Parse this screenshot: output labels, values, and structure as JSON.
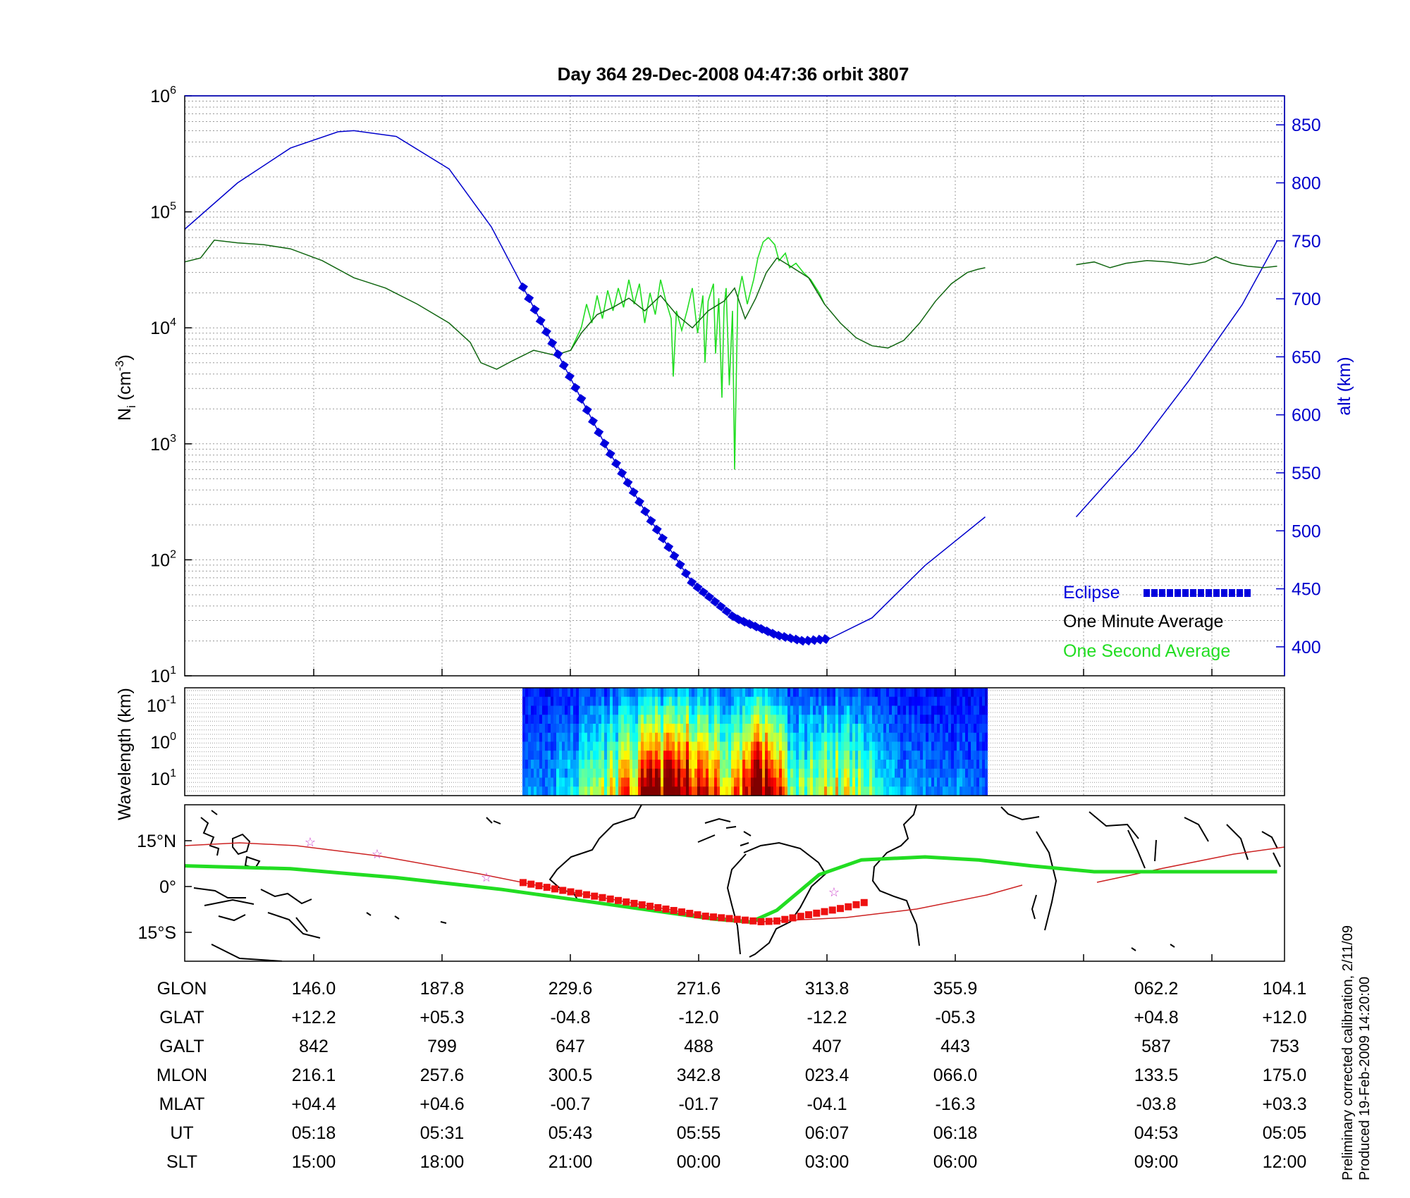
{
  "title": "Day 364  29-Dec-2008 04:47:36   orbit 3807",
  "footer_lines": [
    "Preliminary corrected calibration, 2/11/09",
    "Produced 19-Feb-2009 14:20:00"
  ],
  "colors": {
    "eclipse": "#0000dd",
    "one_minute": "#000000",
    "one_second": "#22dd22",
    "altitude": "#0000cc",
    "track": "#22dd22",
    "track_red": "#ee1111",
    "orbit_line": "#cc2222",
    "stars": "#cc44cc"
  },
  "chart_data": [
    {
      "type": "line",
      "ylabel": "N",
      "ylabel_subscript": "i",
      "ylabel_unit": "(cm",
      "ylabel_unit_exp": "-3",
      "ylabel_unit_close": ")",
      "y_ticks": [
        {
          "base": "10",
          "exp": "1",
          "value": 10
        },
        {
          "base": "10",
          "exp": "2",
          "value": 100
        },
        {
          "base": "10",
          "exp": "3",
          "value": 1000
        },
        {
          "base": "10",
          "exp": "4",
          "value": 10000
        },
        {
          "base": "10",
          "exp": "5",
          "value": 100000
        },
        {
          "base": "10",
          "exp": "6",
          "value": 1000000
        }
      ],
      "ylim": [
        10,
        1000000
      ],
      "yscale": "log",
      "y2label": "alt (km)",
      "y2_ticks": [
        "400",
        "450",
        "500",
        "550",
        "600",
        "650",
        "700",
        "750",
        "800",
        "850"
      ],
      "y2lim": [
        375,
        875
      ],
      "x_ticks": [
        "146.0",
        "187.8",
        "229.6",
        "271.6",
        "313.8",
        "355.9",
        "062.2",
        "104.1"
      ],
      "grid": true,
      "legend": {
        "placement": "bottom-right",
        "entries": [
          "Eclipse",
          "One Minute Average",
          "One Second Average"
        ]
      },
      "series": [
        {
          "name": "One Minute Average",
          "points": [
            [
              0,
              37000
            ],
            [
              0.15,
              40000
            ],
            [
              0.28,
              57000
            ],
            [
              0.5,
              54000
            ],
            [
              0.75,
              52000
            ],
            [
              1.0,
              48000
            ],
            [
              1.3,
              38000
            ],
            [
              1.6,
              27000
            ],
            [
              1.9,
              22000
            ],
            [
              2.2,
              16000
            ],
            [
              2.5,
              11000
            ],
            [
              2.7,
              7500
            ],
            [
              2.8,
              5000
            ],
            [
              2.95,
              4400
            ],
            [
              3.1,
              5200
            ],
            [
              3.3,
              6400
            ],
            [
              3.5,
              5800
            ],
            [
              3.65,
              6400
            ],
            [
              3.75,
              9000
            ],
            [
              3.9,
              13000
            ],
            [
              4.05,
              15000
            ],
            [
              4.2,
              18000
            ],
            [
              4.35,
              14000
            ],
            [
              4.5,
              19000
            ],
            [
              4.65,
              13000
            ],
            [
              4.8,
              10000
            ],
            [
              4.95,
              14000
            ],
            [
              5.1,
              17000
            ],
            [
              5.2,
              22000
            ],
            [
              5.3,
              12000
            ],
            [
              5.4,
              18000
            ],
            [
              5.5,
              30000
            ],
            [
              5.6,
              40000
            ],
            [
              5.75,
              33000
            ],
            [
              5.9,
              27000
            ],
            [
              6.05,
              16000
            ],
            [
              6.2,
              11000
            ],
            [
              6.35,
              8200
            ],
            [
              6.5,
              7000
            ],
            [
              6.65,
              6700
            ],
            [
              6.8,
              7800
            ],
            [
              6.95,
              11000
            ],
            [
              7.1,
              17000
            ],
            [
              7.25,
              24000
            ],
            [
              7.4,
              30000
            ],
            [
              7.5,
              32000
            ],
            [
              7.57,
              33000
            ]
          ]
        },
        {
          "name": "One Minute Average (cont.)",
          "points": [
            [
              8.43,
              35000
            ],
            [
              8.6,
              37000
            ],
            [
              8.75,
              33000
            ],
            [
              8.9,
              36000
            ],
            [
              9.1,
              38000
            ],
            [
              9.3,
              37000
            ],
            [
              9.5,
              35000
            ],
            [
              9.65,
              37000
            ],
            [
              9.75,
              41000
            ],
            [
              9.9,
              36000
            ],
            [
              10.05,
              34000
            ],
            [
              10.2,
              33000
            ],
            [
              10.33,
              34000
            ]
          ]
        },
        {
          "name": "One Second Average",
          "points": [
            [
              3.65,
              6400
            ],
            [
              3.75,
              10000
            ],
            [
              3.8,
              16000
            ],
            [
              3.85,
              11000
            ],
            [
              3.9,
              19000
            ],
            [
              3.95,
              12000
            ],
            [
              4.0,
              21000
            ],
            [
              4.05,
              14000
            ],
            [
              4.1,
              22000
            ],
            [
              4.15,
              15000
            ],
            [
              4.2,
              26000
            ],
            [
              4.25,
              16000
            ],
            [
              4.3,
              24000
            ],
            [
              4.35,
              11000
            ],
            [
              4.4,
              20000
            ],
            [
              4.45,
              13000
            ],
            [
              4.5,
              26000
            ],
            [
              4.55,
              17000
            ],
            [
              4.6,
              12000
            ],
            [
              4.62,
              3800
            ],
            [
              4.65,
              14000
            ],
            [
              4.7,
              9500
            ],
            [
              4.75,
              14000
            ],
            [
              4.8,
              22000
            ],
            [
              4.85,
              9000
            ],
            [
              4.9,
              19000
            ],
            [
              4.92,
              5000
            ],
            [
              4.95,
              17000
            ],
            [
              5.0,
              24000
            ],
            [
              5.02,
              6000
            ],
            [
              5.05,
              18000
            ],
            [
              5.08,
              2500
            ],
            [
              5.1,
              15000
            ],
            [
              5.12,
              22000
            ],
            [
              5.15,
              3200
            ],
            [
              5.18,
              14000
            ],
            [
              5.2,
              600
            ],
            [
              5.23,
              18000
            ],
            [
              5.27,
              28000
            ],
            [
              5.32,
              16000
            ],
            [
              5.38,
              26000
            ],
            [
              5.42,
              40000
            ],
            [
              5.47,
              55000
            ],
            [
              5.52,
              60000
            ],
            [
              5.58,
              52000
            ],
            [
              5.62,
              38000
            ],
            [
              5.68,
              44000
            ],
            [
              5.72,
              33000
            ],
            [
              5.78,
              36000
            ],
            [
              5.85,
              30000
            ],
            [
              5.92,
              26000
            ],
            [
              6.0,
              20000
            ],
            [
              6.05,
              16000
            ]
          ]
        }
      ],
      "altitude_km": {
        "name": "alt (km)",
        "points": [
          [
            0,
            760
          ],
          [
            0.5,
            800
          ],
          [
            1.0,
            830
          ],
          [
            1.45,
            844
          ],
          [
            1.6,
            845
          ],
          [
            2.0,
            840
          ],
          [
            2.5,
            812
          ],
          [
            2.9,
            762
          ],
          [
            3.2,
            710
          ],
          [
            3.6,
            640
          ],
          [
            4.0,
            570
          ],
          [
            4.4,
            510
          ],
          [
            4.8,
            455
          ],
          [
            5.2,
            425
          ],
          [
            5.6,
            410
          ],
          [
            5.85,
            405
          ],
          [
            6.1,
            407
          ],
          [
            6.5,
            425
          ],
          [
            7.0,
            470
          ],
          [
            7.57,
            512
          ]
        ]
      },
      "altitude_km_cont": {
        "points": [
          [
            8.43,
            512
          ],
          [
            9.0,
            570
          ],
          [
            9.5,
            630
          ],
          [
            10.0,
            695
          ],
          [
            10.33,
            750
          ]
        ]
      },
      "eclipse_km": {
        "start": 3.2,
        "end": 6.1
      }
    },
    {
      "type": "heatmap",
      "ylabel": "Wavelength (km)",
      "y_ticks": [
        {
          "base": "10",
          "exp": "-1"
        },
        {
          "base": "10",
          "exp": "0"
        },
        {
          "base": "10",
          "exp": "1"
        }
      ],
      "x_extent": [
        3.17,
        7.5
      ],
      "colormap": "jet"
    },
    {
      "type": "map",
      "y_ticks": [
        "15°N",
        "0°",
        "15°S"
      ],
      "track": [
        [
          0,
          7
        ],
        [
          1,
          6
        ],
        [
          2,
          3
        ],
        [
          3,
          -1
        ],
        [
          4,
          -6
        ],
        [
          5,
          -11
        ],
        [
          5.35,
          -12
        ],
        [
          5.6,
          -8
        ],
        [
          5.8,
          -2
        ],
        [
          6.0,
          4
        ],
        [
          6.4,
          9
        ],
        [
          7.0,
          10
        ],
        [
          7.5,
          9
        ],
        [
          8.0,
          7
        ],
        [
          8.6,
          5
        ],
        [
          9.5,
          5
        ],
        [
          10.33,
          5
        ]
      ],
      "track_highlight": {
        "start": 3.2,
        "end": 6.5,
        "lat_offset": -1.5
      },
      "stars": [
        [
          1.0,
          14
        ],
        [
          1.65,
          11
        ],
        [
          2.6,
          3
        ],
        [
          6.0,
          -2
        ]
      ]
    }
  ],
  "table": {
    "row_labels": [
      "GLON",
      "GLAT",
      "GALT",
      "MLON",
      "MLAT",
      "UT",
      "SLT"
    ],
    "columns": [
      [
        "146.0",
        "+12.2",
        "842",
        "216.1",
        "+04.4",
        "05:18",
        "15:00"
      ],
      [
        "187.8",
        "+05.3",
        "799",
        "257.6",
        "+04.6",
        "05:31",
        "18:00"
      ],
      [
        "229.6",
        "-04.8",
        "647",
        "300.5",
        "-00.7",
        "05:43",
        "21:00"
      ],
      [
        "271.6",
        "-12.0",
        "488",
        "342.8",
        "-01.7",
        "05:55",
        "00:00"
      ],
      [
        "313.8",
        "-12.2",
        "407",
        "023.4",
        "-04.1",
        "06:07",
        "03:00"
      ],
      [
        "355.9",
        "-05.3",
        "443",
        "066.0",
        "-16.3",
        "06:18",
        "06:00"
      ],
      [
        "062.2",
        "+04.8",
        "587",
        "133.5",
        "-03.8",
        "04:53",
        "09:00"
      ],
      [
        "104.1",
        "+12.0",
        "753",
        "175.0",
        "+03.3",
        "05:05",
        "12:00"
      ]
    ]
  }
}
